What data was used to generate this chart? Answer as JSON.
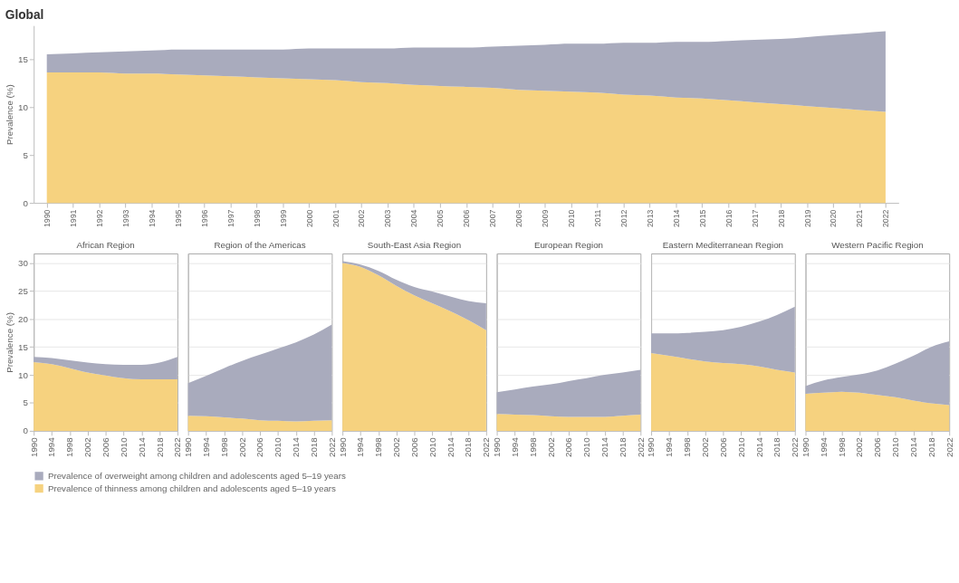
{
  "chart_data": [
    {
      "type": "area",
      "title": "Global",
      "ylabel": "Prevalence (%)",
      "stacked": true,
      "legend": "bottom",
      "categories": [
        "1990",
        "1991",
        "1992",
        "1993",
        "1994",
        "1995",
        "1996",
        "1997",
        "1998",
        "1999",
        "2000",
        "2001",
        "2002",
        "2003",
        "2004",
        "2005",
        "2006",
        "2007",
        "2008",
        "2009",
        "2010",
        "2011",
        "2012",
        "2013",
        "2014",
        "2015",
        "2016",
        "2017",
        "2018",
        "2019",
        "2020",
        "2021",
        "2022"
      ],
      "ylim": [
        0,
        18.5
      ],
      "yticks": [
        0,
        5,
        10,
        15
      ],
      "series": [
        {
          "name": "Prevalence of thinness among children and adolescents aged 5–19 years",
          "color": "#f6d27f",
          "values": [
            13.6,
            13.6,
            13.6,
            13.5,
            13.5,
            13.4,
            13.3,
            13.2,
            13.1,
            13.0,
            12.9,
            12.8,
            12.6,
            12.5,
            12.3,
            12.2,
            12.1,
            12.0,
            11.8,
            11.7,
            11.6,
            11.5,
            11.3,
            11.2,
            11.0,
            10.9,
            10.7,
            10.5,
            10.3,
            10.1,
            9.9,
            9.7,
            9.5
          ]
        },
        {
          "name": "Prevalence of overweight among children and adolescents aged 5–19 years",
          "color": "#a9abbd",
          "values": [
            1.9,
            2.0,
            2.1,
            2.3,
            2.4,
            2.6,
            2.7,
            2.8,
            2.9,
            3.0,
            3.2,
            3.3,
            3.5,
            3.6,
            3.9,
            4.0,
            4.1,
            4.3,
            4.6,
            4.8,
            5.0,
            5.1,
            5.4,
            5.5,
            5.8,
            5.9,
            6.2,
            6.5,
            6.8,
            7.2,
            7.6,
            8.0,
            8.4
          ]
        }
      ]
    },
    {
      "type": "area",
      "title": "African Region",
      "ylabel": "Prevalence (%)",
      "stacked": true,
      "grid": "y",
      "x": [
        1990,
        1994,
        1998,
        2002,
        2006,
        2010,
        2014,
        2018,
        2022
      ],
      "xlim": [
        1990,
        2022
      ],
      "xticks": [
        1990,
        1994,
        1998,
        2002,
        2006,
        2010,
        2014,
        2018,
        2022
      ],
      "ylim": [
        0,
        31.7
      ],
      "yticks": [
        0,
        5,
        10,
        15,
        20,
        25,
        30
      ],
      "series": [
        {
          "color": "#f6d27f",
          "values": [
            12.3,
            11.9,
            11.2,
            10.4,
            9.9,
            9.4,
            9.2,
            9.2,
            9.2
          ]
        },
        {
          "color": "#a9abbd",
          "values": [
            0.9,
            1.1,
            1.4,
            1.8,
            2.0,
            2.4,
            2.6,
            3.0,
            4.0
          ]
        }
      ]
    },
    {
      "type": "area",
      "title": "Region of the Americas",
      "stacked": true,
      "grid": "y",
      "tick_labels": "x",
      "x": [
        1990,
        1994,
        1998,
        2002,
        2006,
        2010,
        2014,
        2018,
        2022
      ],
      "xlim": [
        1990,
        2022
      ],
      "xticks": [
        1990,
        1994,
        1998,
        2002,
        2006,
        2010,
        2014,
        2018,
        2022
      ],
      "ylim": [
        0,
        31.7
      ],
      "yticks": [
        0,
        5,
        10,
        15,
        20,
        25,
        30
      ],
      "series": [
        {
          "color": "#f6d27f",
          "values": [
            2.7,
            2.6,
            2.4,
            2.2,
            1.9,
            1.8,
            1.7,
            1.8,
            1.9
          ]
        },
        {
          "color": "#a9abbd",
          "values": [
            5.8,
            7.2,
            8.8,
            10.3,
            11.7,
            12.9,
            14.1,
            15.4,
            17.1
          ]
        }
      ]
    },
    {
      "type": "area",
      "title": "South-East Asia Region",
      "stacked": true,
      "grid": "y",
      "tick_labels": "x",
      "x": [
        1990,
        1994,
        1998,
        2002,
        2006,
        2010,
        2014,
        2018,
        2022
      ],
      "xlim": [
        1990,
        2022
      ],
      "xticks": [
        1990,
        1994,
        1998,
        2002,
        2006,
        2010,
        2014,
        2018,
        2022
      ],
      "ylim": [
        0,
        31.7
      ],
      "yticks": [
        0,
        5,
        10,
        15,
        20,
        25,
        30
      ],
      "series": [
        {
          "color": "#f6d27f",
          "values": [
            30.0,
            29.3,
            27.8,
            25.9,
            24.2,
            22.8,
            21.4,
            19.8,
            18.0
          ]
        },
        {
          "color": "#a9abbd",
          "values": [
            0.3,
            0.4,
            0.8,
            1.1,
            1.5,
            2.1,
            2.6,
            3.4,
            4.8
          ]
        }
      ]
    },
    {
      "type": "area",
      "title": "European Region",
      "stacked": true,
      "grid": "y",
      "tick_labels": "x",
      "x": [
        1990,
        1994,
        1998,
        2002,
        2006,
        2010,
        2014,
        2018,
        2022
      ],
      "xlim": [
        1990,
        2022
      ],
      "xticks": [
        1990,
        1994,
        1998,
        2002,
        2006,
        2010,
        2014,
        2018,
        2022
      ],
      "ylim": [
        0,
        31.7
      ],
      "yticks": [
        0,
        5,
        10,
        15,
        20,
        25,
        30
      ],
      "series": [
        {
          "color": "#f6d27f",
          "values": [
            3.0,
            2.9,
            2.8,
            2.6,
            2.5,
            2.5,
            2.5,
            2.7,
            2.9
          ]
        },
        {
          "color": "#a9abbd",
          "values": [
            3.9,
            4.5,
            5.1,
            5.7,
            6.4,
            6.9,
            7.5,
            7.7,
            8.0
          ]
        }
      ]
    },
    {
      "type": "area",
      "title": "Eastern Mediterranean Region",
      "stacked": true,
      "grid": "y",
      "tick_labels": "x",
      "x": [
        1990,
        1994,
        1998,
        2002,
        2006,
        2010,
        2014,
        2018,
        2022
      ],
      "xlim": [
        1990,
        2022
      ],
      "xticks": [
        1990,
        1994,
        1998,
        2002,
        2006,
        2010,
        2014,
        2018,
        2022
      ],
      "ylim": [
        0,
        31.7
      ],
      "yticks": [
        0,
        5,
        10,
        15,
        20,
        25,
        30
      ],
      "series": [
        {
          "color": "#f6d27f",
          "values": [
            13.9,
            13.4,
            12.9,
            12.4,
            12.1,
            11.9,
            11.5,
            10.9,
            10.4
          ]
        },
        {
          "color": "#a9abbd",
          "values": [
            3.5,
            4.0,
            4.6,
            5.3,
            5.9,
            6.7,
            8.0,
            9.8,
            11.8
          ]
        }
      ]
    },
    {
      "type": "area",
      "title": "Western Pacific Region",
      "stacked": true,
      "grid": "y",
      "tick_labels": "x",
      "x": [
        1990,
        1994,
        1998,
        2002,
        2006,
        2010,
        2014,
        2018,
        2022
      ],
      "xlim": [
        1990,
        2022
      ],
      "xticks": [
        1990,
        1994,
        1998,
        2002,
        2006,
        2010,
        2014,
        2018,
        2022
      ],
      "ylim": [
        0,
        31.7
      ],
      "yticks": [
        0,
        5,
        10,
        15,
        20,
        25,
        30
      ],
      "series": [
        {
          "color": "#f6d27f",
          "values": [
            6.6,
            6.8,
            7.0,
            6.8,
            6.4,
            6.0,
            5.4,
            4.9,
            4.6
          ]
        },
        {
          "color": "#a9abbd",
          "values": [
            1.4,
            2.2,
            2.6,
            3.3,
            4.4,
            6.0,
            8.0,
            10.1,
            11.4
          ]
        }
      ]
    }
  ]
}
